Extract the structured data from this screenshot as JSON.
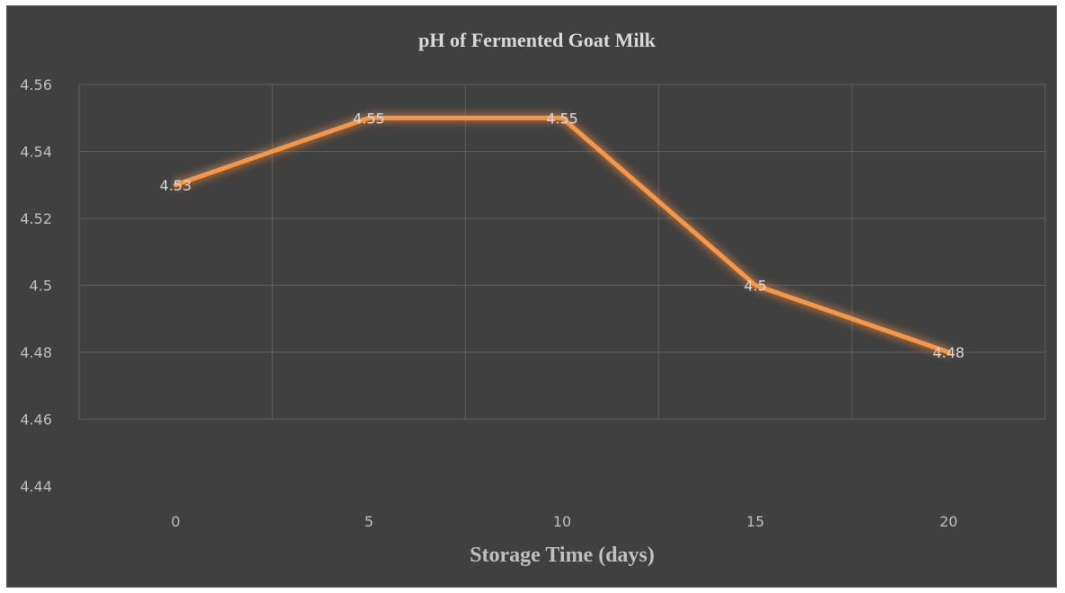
{
  "chart_data": {
    "type": "line",
    "title": "pH of Fermented Goat Milk",
    "xlabel": "Storage Time (days)",
    "ylabel": "",
    "categories": [
      "0",
      "5",
      "10",
      "15",
      "20"
    ],
    "series": [
      {
        "values": [
          4.53,
          4.55,
          4.55,
          4.5,
          4.48
        ],
        "data_labels": [
          "4.53",
          "4.55",
          "4.55",
          "4.5",
          "4.48"
        ],
        "color": "#f79646"
      }
    ],
    "ylim": [
      4.44,
      4.56
    ],
    "yticks": [
      4.44,
      4.46,
      4.48,
      4.5,
      4.52,
      4.54,
      4.56
    ],
    "ytick_labels": [
      "4.44",
      "4.46",
      "4.48",
      "4.5",
      "4.52",
      "4.54",
      "4.56"
    ],
    "grid": true,
    "legend": "none",
    "background_color": "#404040",
    "text_color": "#bfbfbf",
    "grid_color": "#5c5c5c"
  }
}
